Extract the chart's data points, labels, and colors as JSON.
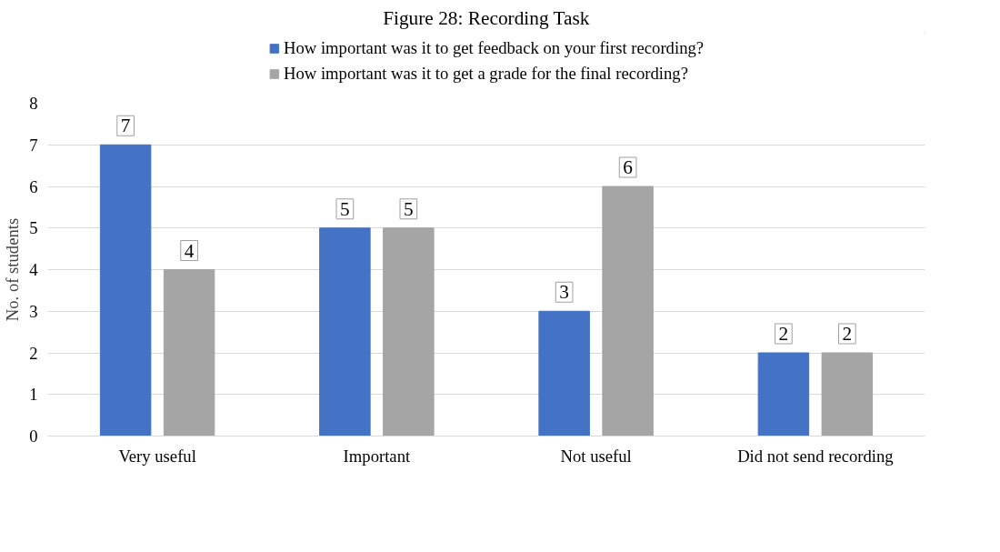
{
  "chart_data": {
    "type": "bar",
    "title": "Figure 28: Recording Task",
    "ylabel": "No. of students",
    "categories": [
      "Very useful",
      "Important",
      "Not useful",
      "Did not send recording"
    ],
    "series": [
      {
        "name": "How important was it to get feedback on your first recording?",
        "color": "#4472c4",
        "values": [
          7,
          5,
          3,
          2
        ]
      },
      {
        "name": "How important was it to get a grade for the final recording?",
        "color": "#a5a5a5",
        "values": [
          4,
          5,
          6,
          2
        ]
      }
    ],
    "ylim": [
      0,
      8
    ],
    "yticks": [
      0,
      1,
      2,
      3,
      4,
      5,
      6,
      7,
      8
    ],
    "grid": "y",
    "legend": "top",
    "data_labels": true
  }
}
